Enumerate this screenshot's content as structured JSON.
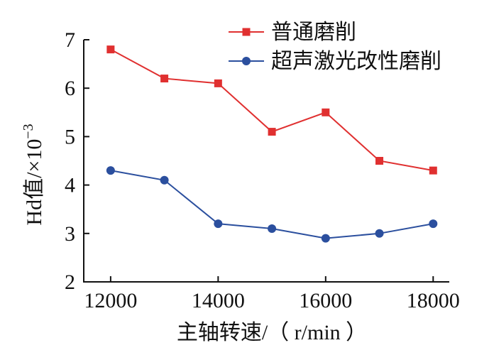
{
  "chart_data": {
    "type": "line",
    "title": "",
    "xlabel": "主轴转速/（ r/min ）",
    "ylabel_main": "Hd值/×10",
    "ylabel_exp": "−3",
    "x": [
      12000,
      13000,
      14000,
      15000,
      16000,
      17000,
      18000
    ],
    "xlim": [
      11500,
      18300
    ],
    "ylim": [
      2,
      7
    ],
    "x_ticks": [
      12000,
      14000,
      16000,
      18000
    ],
    "y_ticks": [
      2,
      3,
      4,
      5,
      6,
      7
    ],
    "grid": false,
    "legend_position": "top-right",
    "series": [
      {
        "name": "普通磨削",
        "color": "#e03030",
        "marker": "square",
        "values": [
          6.8,
          6.2,
          6.1,
          5.1,
          5.5,
          4.5,
          4.3
        ]
      },
      {
        "name": "超声激光改性磨削",
        "color": "#2b4f9e",
        "marker": "circle",
        "values": [
          4.3,
          4.1,
          3.2,
          3.1,
          2.9,
          3.0,
          3.2
        ]
      }
    ]
  }
}
